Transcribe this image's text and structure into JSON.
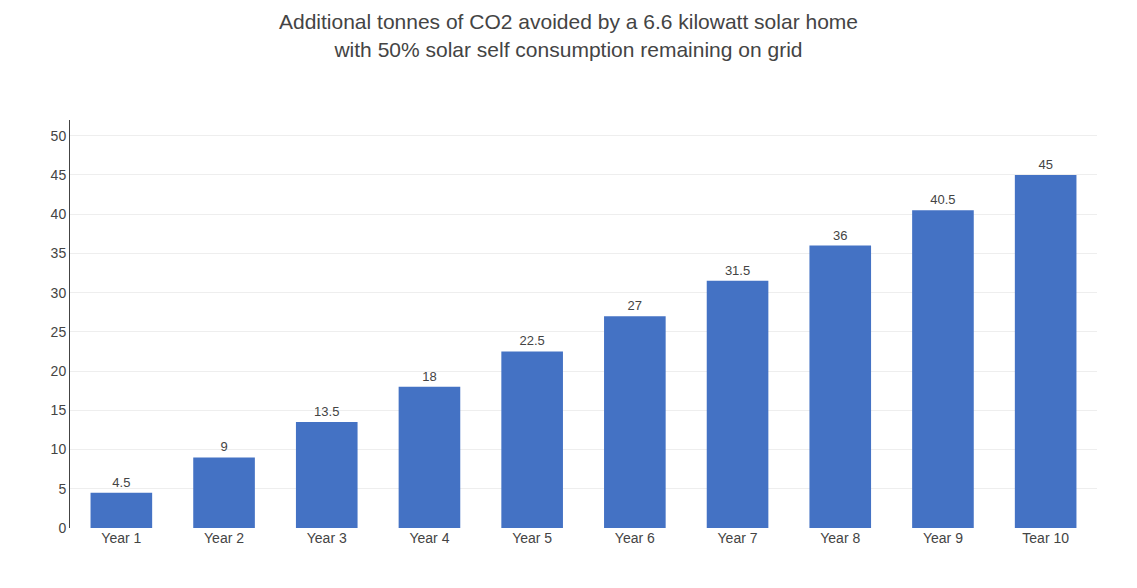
{
  "chart_data": {
    "type": "bar",
    "title": "Additional tonnes of CO2 avoided by a 6.6 kilowatt solar home",
    "subtitle": "with 50% solar self consumption remaining on grid",
    "categories": [
      "Year 1",
      "Year 2",
      "Year 3",
      "Year 4",
      "Year 5",
      "Year 6",
      "Year 7",
      "Year 8",
      "Year 9",
      "Tear 10"
    ],
    "values": [
      4.5,
      9,
      13.5,
      18,
      22.5,
      27,
      31.5,
      36,
      40.5,
      45
    ],
    "color": "#4472C4",
    "ylim": [
      0,
      52
    ],
    "yticks": [
      0,
      5,
      10,
      15,
      20,
      25,
      30,
      35,
      40,
      45,
      50
    ],
    "grid": true,
    "data_labels": true
  }
}
